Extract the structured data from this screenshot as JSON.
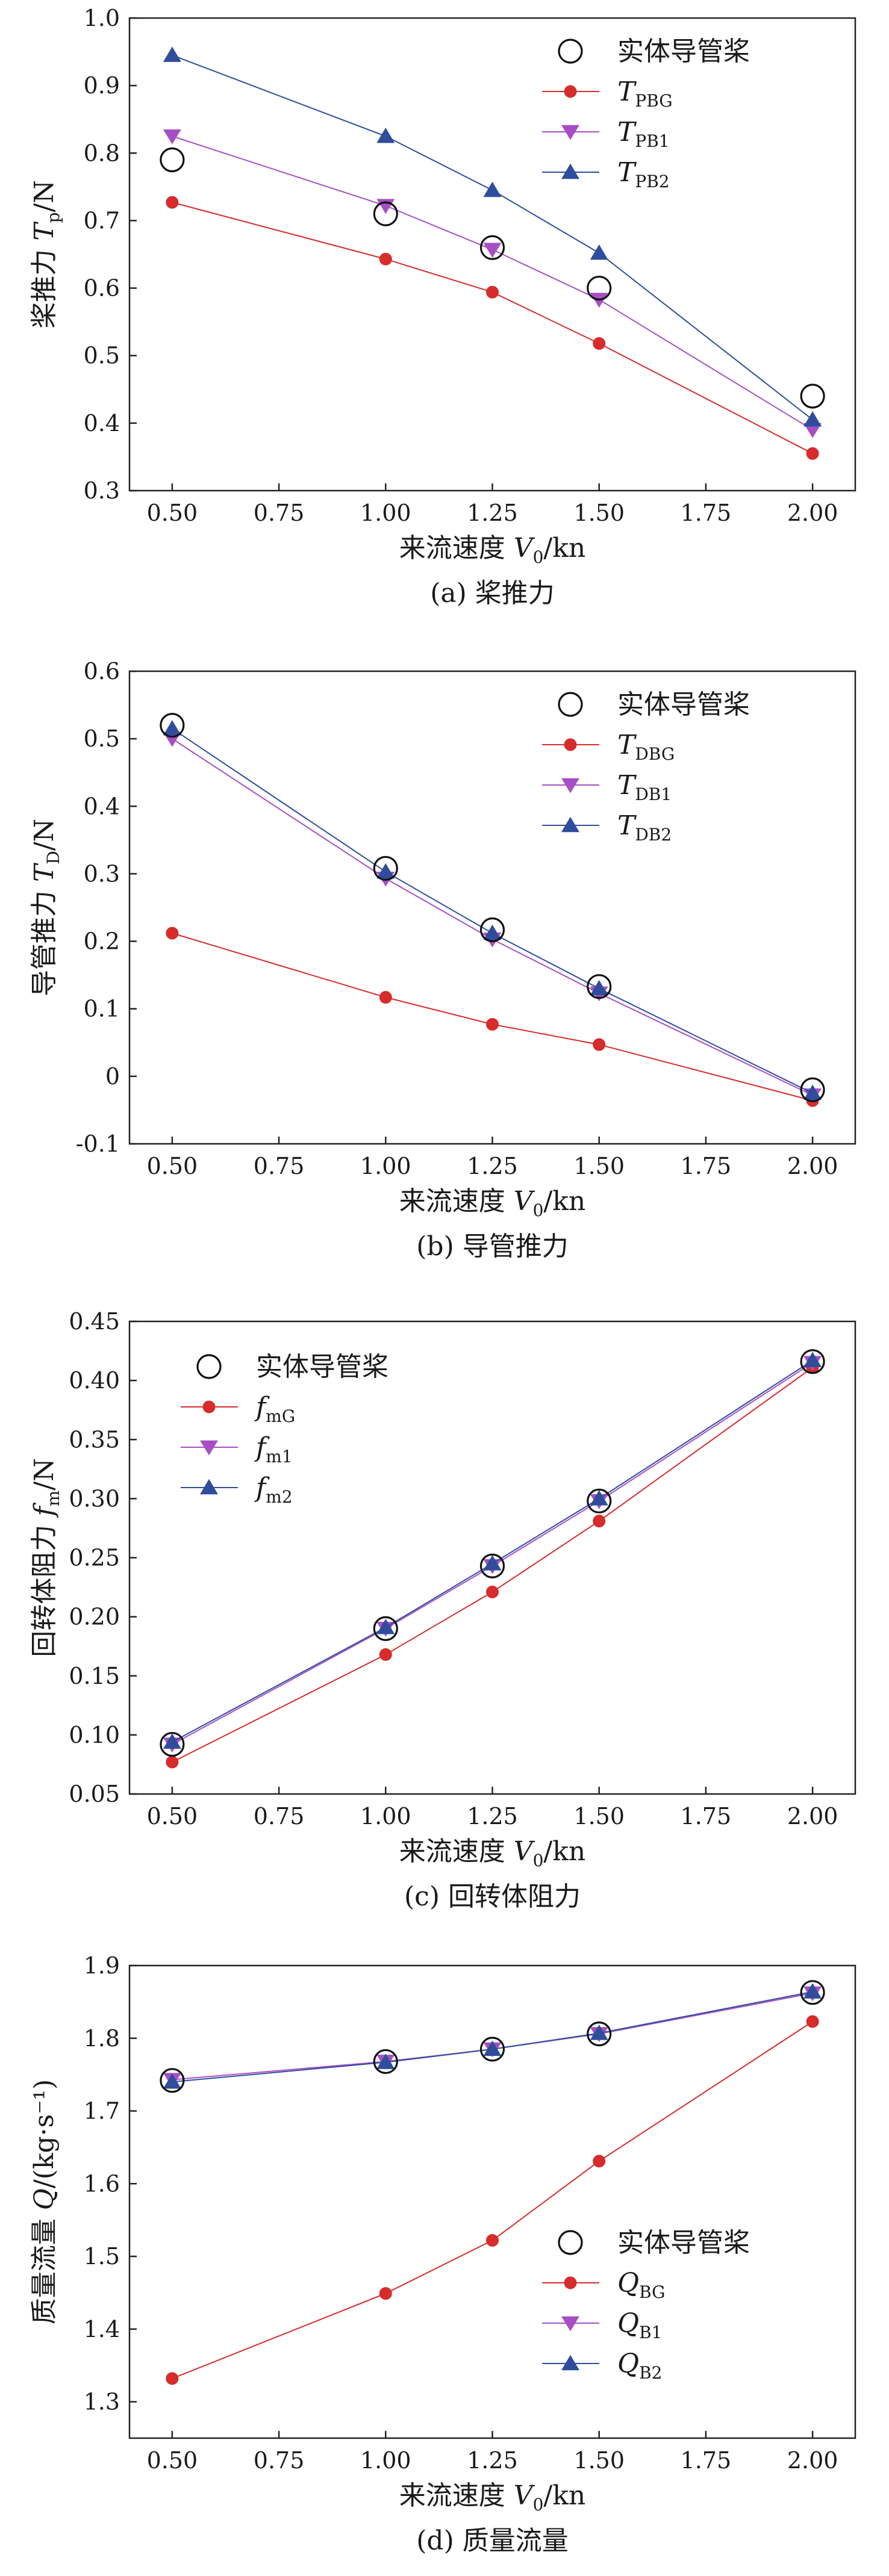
{
  "colors": {
    "G": "#d62c2c",
    "1": "#a64fc4",
    "2": "#2f4d9c",
    "cfd": "#111111"
  },
  "chart_data": [
    {
      "id": "a",
      "type": "line",
      "caption": "(a) 桨推力",
      "xlabel": {
        "prefix": "来流速度 ",
        "var": "V",
        "sub": "0",
        "suffix": "/kn"
      },
      "ylabel": {
        "prefix": "桨推力 ",
        "var": "T",
        "sub": "p",
        "suffix": "/N"
      },
      "xlim": [
        0.4,
        2.1
      ],
      "ylim": [
        0.3,
        1.0
      ],
      "xticks": [
        "0.50",
        "0.75",
        "1.00",
        "1.25",
        "1.50",
        "1.75",
        "2.00"
      ],
      "yticks": [
        "0.3",
        "0.4",
        "0.5",
        "0.6",
        "0.7",
        "0.8",
        "0.9",
        "1.0"
      ],
      "x": [
        0.5,
        1.0,
        1.25,
        1.5,
        2.0
      ],
      "reference": {
        "name": "实体导管桨",
        "marker": "open-circle",
        "values": [
          0.79,
          0.71,
          0.66,
          0.6,
          0.44
        ]
      },
      "series": [
        {
          "var": "T",
          "sub": "PBG",
          "marker": "circle",
          "color_key": "G",
          "values": [
            0.727,
            0.643,
            0.594,
            0.518,
            0.355
          ]
        },
        {
          "var": "T",
          "sub": "PB1",
          "marker": "triangle-down",
          "color_key": "1",
          "values": [
            0.825,
            0.722,
            0.657,
            0.583,
            0.39
          ]
        },
        {
          "var": "T",
          "sub": "PB2",
          "marker": "triangle-up",
          "color_key": "2",
          "values": [
            0.945,
            0.825,
            0.745,
            0.652,
            0.405
          ]
        }
      ],
      "legend": "top-right"
    },
    {
      "id": "b",
      "type": "line",
      "caption": "(b) 导管推力",
      "xlabel": {
        "prefix": "来流速度 ",
        "var": "V",
        "sub": "0",
        "suffix": "/kn"
      },
      "ylabel": {
        "prefix": "导管推力 ",
        "var": "T",
        "sub": "D",
        "suffix": "/N"
      },
      "xlim": [
        0.4,
        2.1
      ],
      "ylim": [
        -0.1,
        0.6
      ],
      "xticks": [
        "0.50",
        "0.75",
        "1.00",
        "1.25",
        "1.50",
        "1.75",
        "2.00"
      ],
      "yticks": [
        "-0.1",
        "0",
        "0.1",
        "0.2",
        "0.3",
        "0.4",
        "0.5",
        "0.6"
      ],
      "x": [
        0.5,
        1.0,
        1.25,
        1.5,
        2.0
      ],
      "reference": {
        "name": "实体导管桨",
        "marker": "open-circle",
        "values": [
          0.52,
          0.308,
          0.217,
          0.133,
          -0.02
        ]
      },
      "series": [
        {
          "var": "T",
          "sub": "DBG",
          "marker": "circle",
          "color_key": "G",
          "values": [
            0.212,
            0.117,
            0.077,
            0.047,
            -0.036
          ]
        },
        {
          "var": "T",
          "sub": "DB1",
          "marker": "triangle-down",
          "color_key": "1",
          "values": [
            0.5,
            0.293,
            0.203,
            0.123,
            -0.028
          ]
        },
        {
          "var": "T",
          "sub": "DB2",
          "marker": "triangle-up",
          "color_key": "2",
          "values": [
            0.515,
            0.303,
            0.212,
            0.13,
            -0.025
          ]
        }
      ],
      "legend": "top-right"
    },
    {
      "id": "c",
      "type": "line",
      "caption": "(c) 回转体阻力",
      "xlabel": {
        "prefix": "来流速度 ",
        "var": "V",
        "sub": "0",
        "suffix": "/kn"
      },
      "ylabel": {
        "prefix": "回转体阻力 ",
        "var": "f",
        "sub": "m",
        "suffix": "/N"
      },
      "xlim": [
        0.4,
        2.1
      ],
      "ylim": [
        0.05,
        0.45
      ],
      "xticks": [
        "0.50",
        "0.75",
        "1.00",
        "1.25",
        "1.50",
        "1.75",
        "2.00"
      ],
      "yticks": [
        "0.05",
        "0.10",
        "0.15",
        "0.20",
        "0.25",
        "0.30",
        "0.35",
        "0.40",
        "0.45"
      ],
      "x": [
        0.5,
        1.0,
        1.25,
        1.5,
        2.0
      ],
      "reference": {
        "name": "实体导管桨",
        "marker": "open-circle",
        "values": [
          0.092,
          0.19,
          0.243,
          0.298,
          0.416
        ]
      },
      "series": [
        {
          "var": "f",
          "sub": "mG",
          "marker": "circle",
          "color_key": "G",
          "values": [
            0.077,
            0.168,
            0.221,
            0.281,
            0.411
          ]
        },
        {
          "var": "f",
          "sub": "m1",
          "marker": "triangle-down",
          "color_key": "1",
          "values": [
            0.092,
            0.19,
            0.243,
            0.298,
            0.415
          ]
        },
        {
          "var": "f",
          "sub": "m2",
          "marker": "triangle-up",
          "color_key": "2",
          "values": [
            0.094,
            0.191,
            0.245,
            0.3,
            0.417
          ]
        }
      ],
      "legend": "top-left"
    },
    {
      "id": "d",
      "type": "line",
      "caption": "(d) 质量流量",
      "xlabel": {
        "prefix": "来流速度 ",
        "var": "V",
        "sub": "0",
        "suffix": "/kn"
      },
      "ylabel": {
        "prefix": "质量流量 ",
        "var": "Q",
        "sub": "",
        "suffix": "/(kg·s⁻¹)"
      },
      "xlim": [
        0.4,
        2.1
      ],
      "ylim": [
        1.25,
        1.9
      ],
      "xticks": [
        "0.50",
        "0.75",
        "1.00",
        "1.25",
        "1.50",
        "1.75",
        "2.00"
      ],
      "yticks": [
        "1.3",
        "1.4",
        "1.5",
        "1.6",
        "1.7",
        "1.8",
        "1.9"
      ],
      "x": [
        0.5,
        1.0,
        1.25,
        1.5,
        2.0
      ],
      "reference": {
        "name": "实体导管桨",
        "marker": "open-circle",
        "values": [
          1.742,
          1.768,
          1.785,
          1.806,
          1.863
        ]
      },
      "series": [
        {
          "var": "Q",
          "sub": "BG",
          "marker": "circle",
          "color_key": "G",
          "values": [
            1.332,
            1.449,
            1.522,
            1.631,
            1.823
          ]
        },
        {
          "var": "Q",
          "sub": "B1",
          "marker": "triangle-down",
          "color_key": "1",
          "values": [
            1.743,
            1.768,
            1.785,
            1.806,
            1.862
          ]
        },
        {
          "var": "Q",
          "sub": "B2",
          "marker": "triangle-up",
          "color_key": "2",
          "values": [
            1.74,
            1.767,
            1.785,
            1.807,
            1.864
          ]
        }
      ],
      "legend": "bottom-right"
    }
  ]
}
